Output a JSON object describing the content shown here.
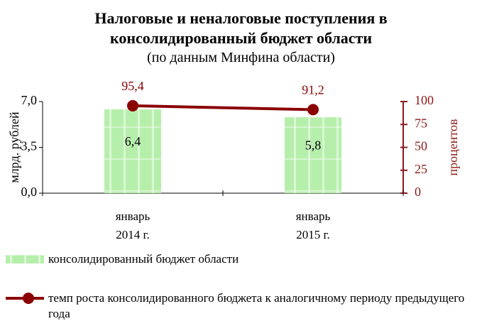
{
  "chart_data": {
    "type": "bar",
    "title": "Налоговые и неналоговые поступления  в\nконсолидированный бюджет области",
    "subtitle": "(по данным Минфина области)",
    "categories": [
      "январь\n2014 г.",
      "январь\n2015 г."
    ],
    "ylabel": "млрд. рублей",
    "ylim": [
      0,
      7
    ],
    "yticks": [
      {
        "value": 0,
        "label": "0,0"
      },
      {
        "value": 3.5,
        "label": "3,5"
      },
      {
        "value": 7,
        "label": "7,0"
      }
    ],
    "y2label": "процентов",
    "y2lim": [
      0,
      100
    ],
    "y2ticks": [
      0,
      25,
      50,
      75,
      100
    ],
    "y2color": "#8b1a1a",
    "legend": "bottom",
    "series": [
      {
        "name": "консолидированный бюджет области",
        "type": "bar",
        "color": "#b6efac",
        "values": [
          6.4,
          5.8
        ],
        "value_labels": [
          "6,4",
          "5,8"
        ]
      },
      {
        "name": "темп роста консолидированного бюджета к аналогичному периоду предыдущего года",
        "type": "line",
        "axis": "y2",
        "color": "#8b0000",
        "values": [
          95.4,
          91.2
        ],
        "value_labels": [
          "95,4",
          "91,2"
        ]
      }
    ]
  }
}
